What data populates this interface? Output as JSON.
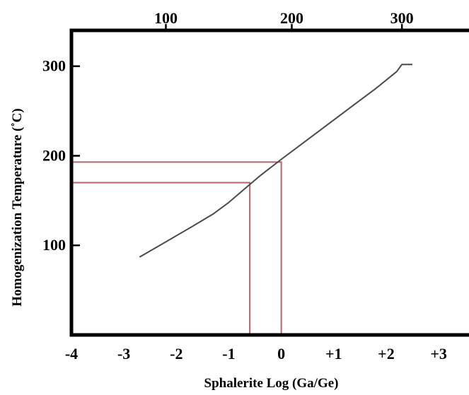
{
  "chart_data": {
    "type": "line",
    "xlabel": "Sphalerite Log (Ga/Ge)",
    "ylabel": "Homogenization Temperature (˚C)",
    "xlim": [
      -4,
      3.7
    ],
    "ylim": [
      0,
      340
    ],
    "x_ticks": [
      "-4",
      "-3",
      "-2",
      "-1",
      "0",
      "+1",
      "+2",
      "+3"
    ],
    "x_tick_values": [
      -4,
      -3,
      -2,
      -1,
      0,
      1,
      2,
      3
    ],
    "y_ticks": [
      "100",
      "200",
      "300"
    ],
    "y_tick_values": [
      100,
      200,
      300
    ],
    "top_axis_ticks": [
      "100",
      "200",
      "300"
    ],
    "top_axis_tick_positions_x": [
      -2.2,
      0.2,
      2.3
    ],
    "grid": false,
    "series": [
      {
        "color": "#4a4a4a",
        "x": [
          -2.7,
          -2.2,
          -1.7,
          -1.3,
          -1.0,
          -0.7,
          -0.4,
          0.0,
          0.5,
          1.0,
          1.5,
          1.8,
          2.2,
          2.3,
          2.5
        ],
        "y": [
          87,
          104,
          121,
          135,
          148,
          163,
          178,
          196,
          218,
          240,
          262,
          275,
          294,
          302,
          302
        ]
      }
    ],
    "reference_lines": [
      {
        "color": "#b5656a",
        "x": 0.0,
        "y": 193
      },
      {
        "color": "#b5656a",
        "x": -0.6,
        "y": 170
      }
    ]
  }
}
